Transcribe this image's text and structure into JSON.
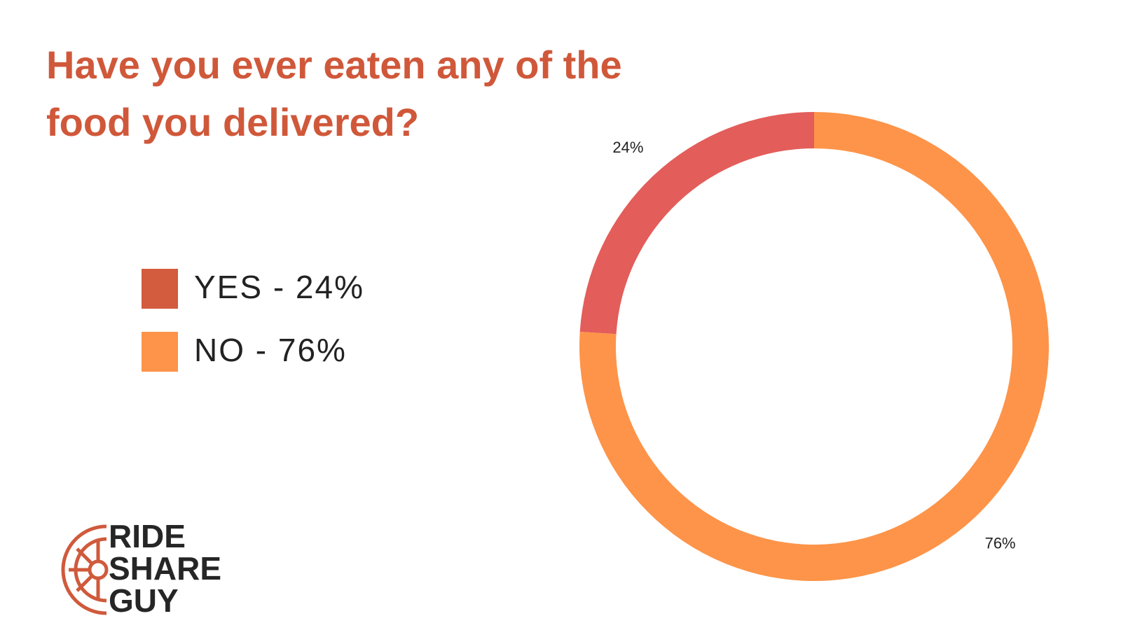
{
  "chart_data": {
    "type": "donut",
    "title": "Have you ever eaten any of the food you delivered?",
    "categories": [
      "YES - 24%",
      "NO - 76%"
    ],
    "values": [
      24,
      76
    ],
    "value_labels": [
      "24%",
      "76%"
    ],
    "colors": [
      "#e35d5a",
      "#fd9449"
    ],
    "legend_colors": [
      "#d35b3e",
      "#fd9449"
    ]
  },
  "logo": {
    "lines": [
      "RIDE",
      "SHARE",
      "GUY"
    ]
  }
}
